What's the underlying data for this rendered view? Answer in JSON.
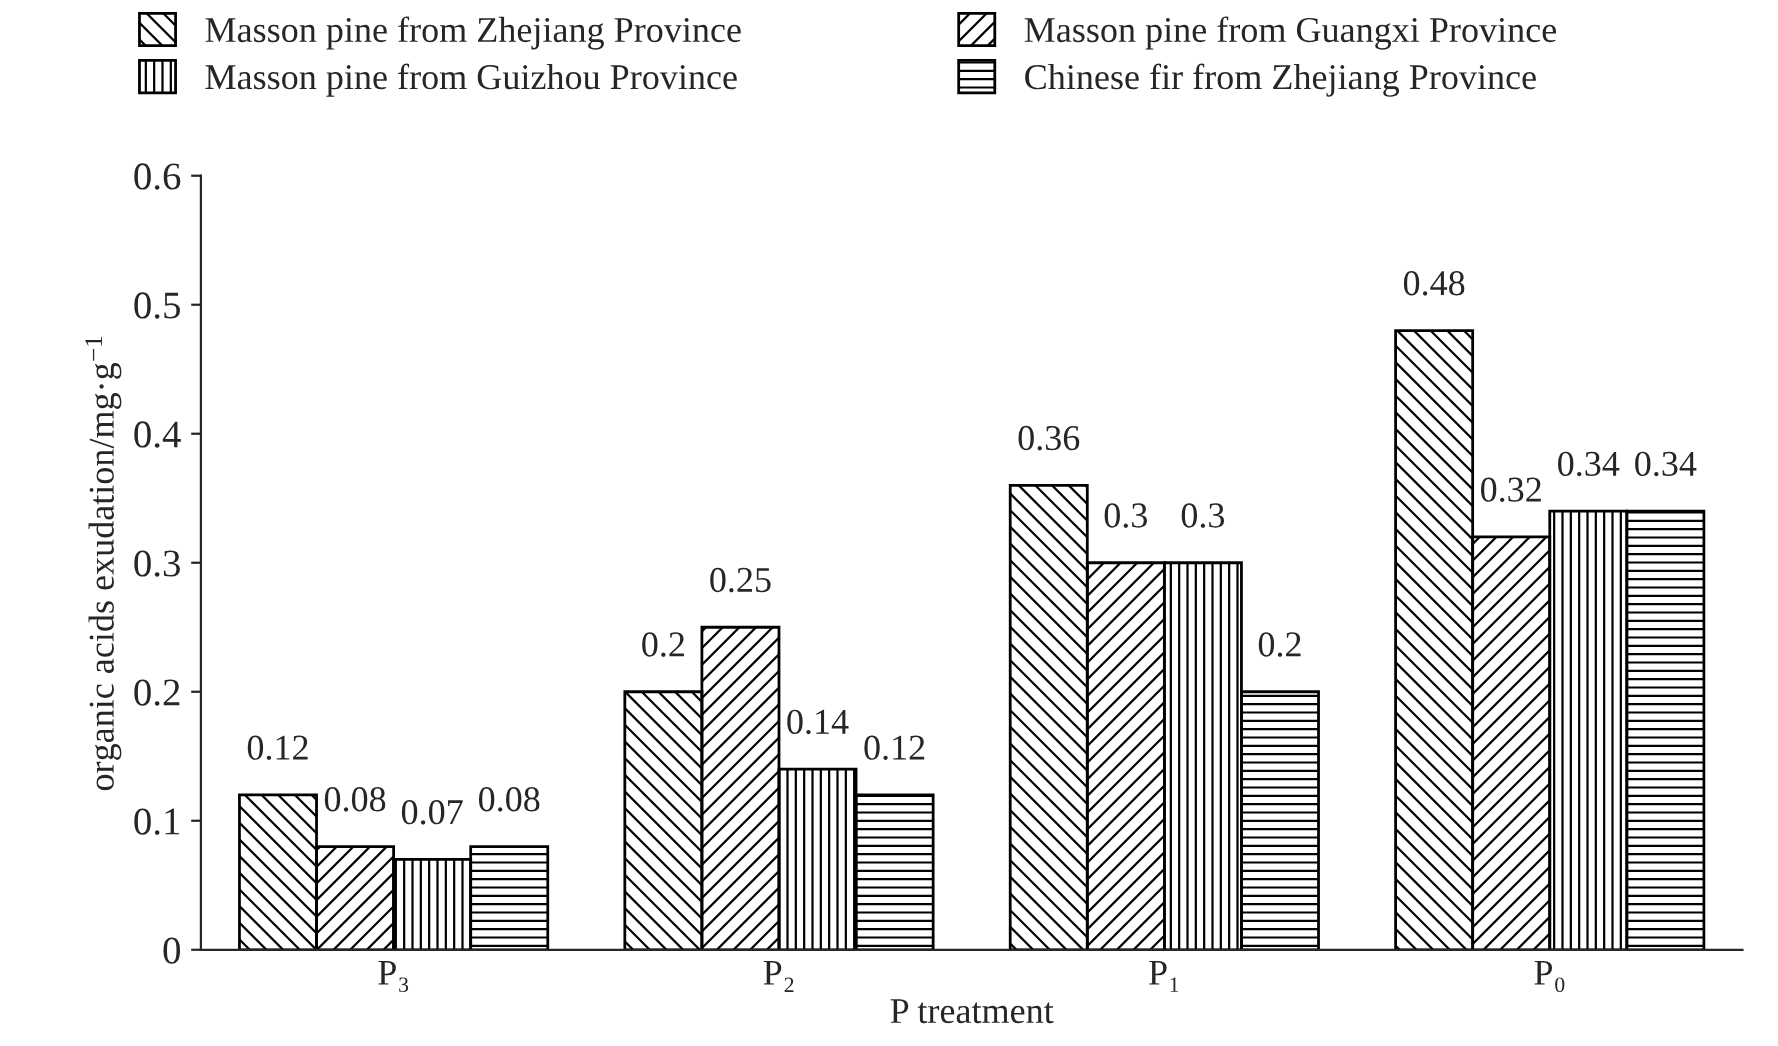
{
  "chart_data": {
    "type": "bar",
    "xlabel": "P treatment",
    "ylabel": "organic acids exudation/mg·g$^{−1}$",
    "categories": [
      "P₃",
      "P₂",
      "P₁",
      "P₀"
    ],
    "series": [
      {
        "name": "Masson pine from Zhejiang Province",
        "color": "#000000",
        "values": [
          0.12,
          0.2,
          0.36,
          0.48
        ]
      },
      {
        "name": "Masson pine from Guangxi Province",
        "color": "#000000",
        "values": [
          0.08,
          0.25,
          0.3,
          0.32
        ]
      },
      {
        "name": "Masson pine from Guizhou Province",
        "color": "#000000",
        "values": [
          0.07,
          0.14,
          0.3,
          0.34
        ]
      },
      {
        "name": "Chinese fir from Zhejiang Province",
        "color": "#000000",
        "values": [
          0.08,
          0.12,
          0.2,
          0.34
        ]
      }
    ],
    "ylim": [
      0,
      0.6
    ],
    "yticks": [
      0,
      0.1,
      0.2,
      0.3,
      0.4,
      0.5,
      0.6
    ],
    "data_labels": true,
    "legend": "top",
    "grid": false
  }
}
